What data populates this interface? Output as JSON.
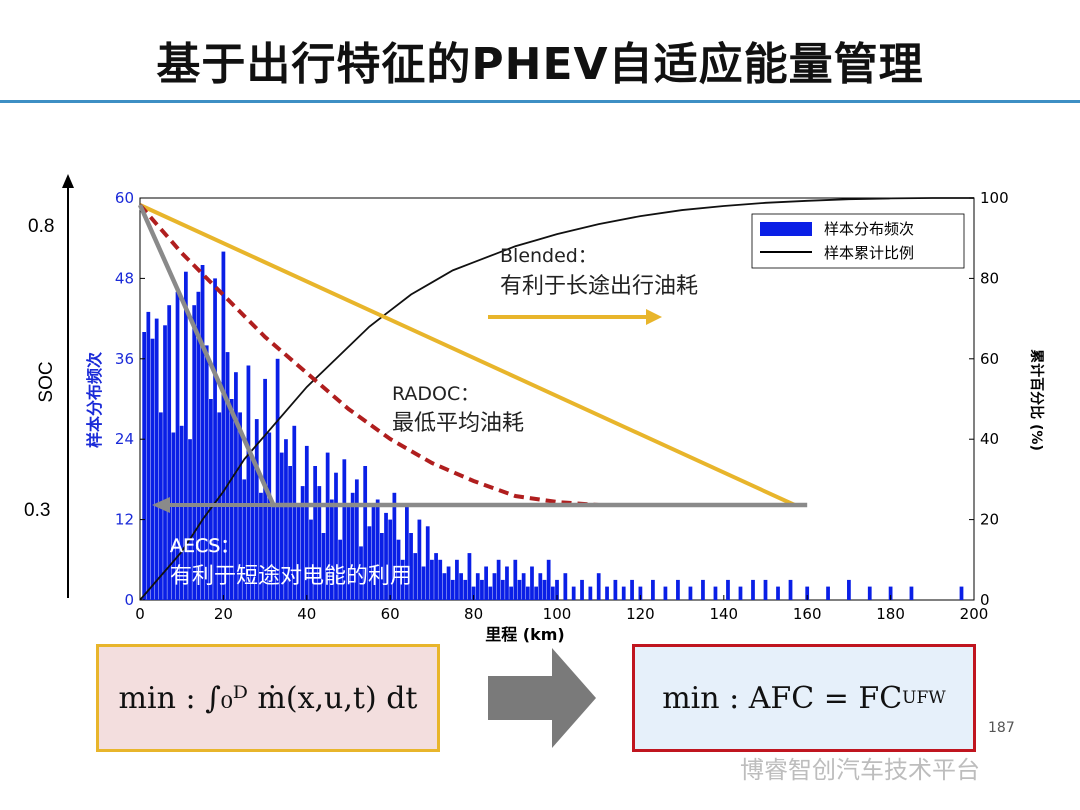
{
  "slide": {
    "title": "基于出行特征的PHEV自适应能量管理",
    "page_number": "187",
    "footer": "博睿智创汽车技术平台"
  },
  "soc_axis": {
    "label": "SOC",
    "high": "0.8",
    "low": "0.3"
  },
  "formulas": {
    "left": "min : ∫₀ᴰ ṁ(x,u,t) dt",
    "right_main": "min : AFC = FC",
    "right_sub": "UFW"
  },
  "annotations": {
    "blended_title": "Blended：",
    "blended_desc": "有利于长途出行油耗",
    "radoc_title": "RADOC：",
    "radoc_desc": "最低平均油耗",
    "aecs_title": "AECS：",
    "aecs_desc": "有利于短途对电能的利用"
  },
  "colors": {
    "bar": "#0a1fe6",
    "cumulative": "#111111",
    "blended": "#e8b52b",
    "radoc": "#b01e1e",
    "aecs": "#8a8a8a",
    "arrow": "#777777",
    "title_rule": "#3d8fc4"
  },
  "chart_data": {
    "type": "bar",
    "xlabel": "里程 (km)",
    "ylabel_left": "样本分布频次",
    "ylabel_right": "累计百分比 (%)",
    "xlim": [
      0,
      200
    ],
    "ylim_left": [
      0,
      60
    ],
    "ylim_right": [
      0,
      100
    ],
    "xticks": [
      "0",
      "20",
      "40",
      "60",
      "80",
      "100",
      "120",
      "140",
      "160",
      "180",
      "200"
    ],
    "yticks_left": [
      "0",
      "12",
      "24",
      "36",
      "48",
      "60"
    ],
    "yticks_right": [
      "0",
      "20",
      "40",
      "60",
      "80",
      "100"
    ],
    "legend": {
      "placement": "top-right",
      "entries": [
        "样本分布频次",
        "样本累计比例"
      ]
    },
    "bars": {
      "name": "样本分布频次",
      "x": [
        1,
        2,
        3,
        4,
        5,
        6,
        7,
        8,
        9,
        10,
        11,
        12,
        13,
        14,
        15,
        16,
        17,
        18,
        19,
        20,
        21,
        22,
        23,
        24,
        25,
        26,
        27,
        28,
        29,
        30,
        31,
        32,
        33,
        34,
        35,
        36,
        37,
        38,
        39,
        40,
        41,
        42,
        43,
        44,
        45,
        46,
        47,
        48,
        49,
        50,
        51,
        52,
        53,
        54,
        55,
        56,
        57,
        58,
        59,
        60,
        61,
        62,
        63,
        64,
        65,
        66,
        67,
        68,
        69,
        70,
        71,
        72,
        73,
        74,
        75,
        76,
        77,
        78,
        79,
        80,
        81,
        82,
        83,
        84,
        85,
        86,
        87,
        88,
        89,
        90,
        91,
        92,
        93,
        94,
        95,
        96,
        97,
        98,
        99,
        100,
        102,
        104,
        106,
        108,
        110,
        112,
        114,
        116,
        118,
        120,
        123,
        126,
        129,
        132,
        135,
        138,
        141,
        144,
        147,
        150,
        153,
        156,
        160,
        165,
        170,
        175,
        180,
        185,
        197
      ],
      "values": [
        40,
        43,
        39,
        42,
        28,
        41,
        44,
        25,
        46,
        26,
        49,
        24,
        44,
        46,
        50,
        38,
        30,
        48,
        28,
        52,
        37,
        30,
        34,
        28,
        18,
        35,
        21,
        27,
        16,
        33,
        25,
        14,
        36,
        22,
        24,
        20,
        26,
        14,
        17,
        23,
        12,
        20,
        17,
        10,
        22,
        15,
        19,
        9,
        21,
        14,
        16,
        18,
        8,
        20,
        11,
        14,
        15,
        10,
        13,
        12,
        16,
        9,
        6,
        14,
        10,
        7,
        12,
        5,
        11,
        6,
        7,
        6,
        4,
        5,
        3,
        6,
        4,
        3,
        7,
        2,
        4,
        3,
        5,
        2,
        4,
        6,
        3,
        5,
        2,
        6,
        3,
        4,
        2,
        5,
        2,
        4,
        3,
        6,
        2,
        3,
        4,
        2,
        3,
        2,
        4,
        2,
        3,
        2,
        3,
        2,
        3,
        2,
        3,
        2,
        3,
        2,
        3,
        2,
        3,
        3,
        2,
        3,
        2,
        2,
        3,
        2,
        2,
        2,
        2
      ]
    },
    "cumulative": {
      "name": "样本累计比例",
      "x": [
        0,
        5,
        10,
        15,
        20,
        25,
        30,
        35,
        40,
        45,
        50,
        55,
        60,
        65,
        70,
        75,
        80,
        85,
        90,
        95,
        100,
        110,
        120,
        130,
        140,
        150,
        160,
        170,
        180,
        190,
        200
      ],
      "values": [
        0,
        6,
        12,
        20,
        27,
        35,
        41,
        47,
        53,
        58,
        63,
        68,
        72,
        76,
        79,
        82,
        84,
        86,
        88,
        89.5,
        91,
        93.5,
        95.5,
        97,
        98,
        98.8,
        99.3,
        99.7,
        99.9,
        100,
        100
      ]
    },
    "strategies": [
      {
        "name": "Blended",
        "x": [
          0,
          157
        ],
        "soc": [
          0.8,
          0.3
        ]
      },
      {
        "name": "RADOC",
        "x": [
          0,
          10,
          20,
          30,
          40,
          50,
          60,
          70,
          80,
          90,
          100,
          110,
          120,
          130,
          140,
          150,
          157
        ],
        "soc": [
          0.8,
          0.72,
          0.65,
          0.58,
          0.52,
          0.46,
          0.41,
          0.37,
          0.34,
          0.315,
          0.305,
          0.3,
          0.3,
          0.3,
          0.3,
          0.3,
          0.3
        ]
      },
      {
        "name": "AECS",
        "x": [
          0,
          32,
          160
        ],
        "soc": [
          0.8,
          0.3,
          0.3
        ]
      }
    ],
    "soc_range": [
      0.3,
      0.8
    ]
  }
}
